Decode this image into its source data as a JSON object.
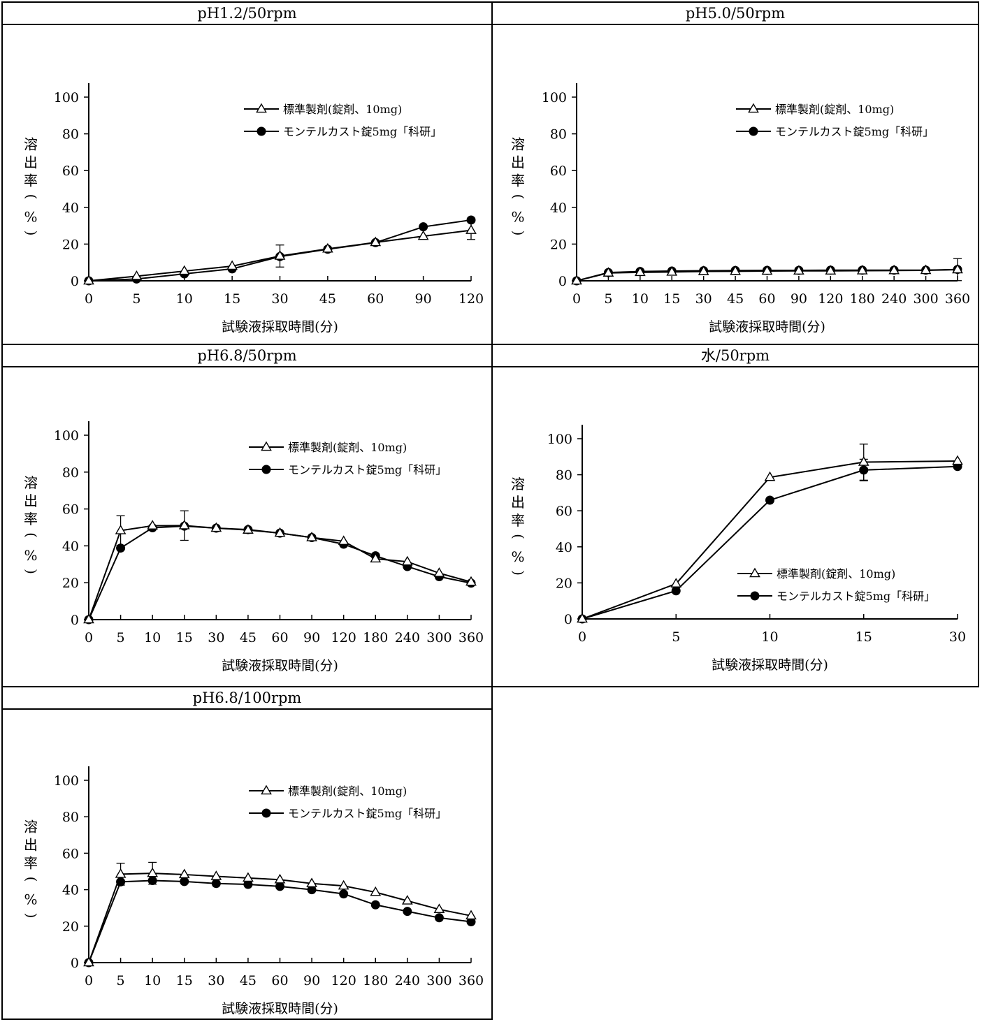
{
  "chart_data": [
    {
      "id": "p1",
      "type": "line",
      "title": "pH1.2/50rpm",
      "xlabel": "試験液採取時間(分)",
      "ylabel": "溶出率(%)",
      "ylim": [
        0,
        100
      ],
      "yticks": [
        0,
        20,
        40,
        60,
        80,
        100
      ],
      "categories": [
        "0",
        "5",
        "10",
        "15",
        "30",
        "45",
        "60",
        "90",
        "120"
      ],
      "legend_position": "top-right",
      "series": [
        {
          "name": "標準製剤(錠剤、10mg)",
          "marker": "open-triangle",
          "values": [
            0,
            2.5,
            5.3,
            8.0,
            13.5,
            17.4,
            20.9,
            24.3,
            27.5
          ],
          "error": [
            0,
            0,
            0,
            0,
            6,
            0,
            0,
            0,
            5
          ]
        },
        {
          "name": "モンテルカスト錠5mg「科研」",
          "marker": "filled-circle",
          "values": [
            0,
            1.0,
            3.8,
            6.5,
            13.2,
            17.2,
            20.8,
            29.4,
            33.1
          ],
          "error": [
            0,
            0,
            0,
            0,
            0,
            0,
            0,
            0,
            0
          ]
        }
      ]
    },
    {
      "id": "p2",
      "type": "line",
      "title": "pH5.0/50rpm",
      "xlabel": "試験液採取時間(分)",
      "ylabel": "溶出率(%)",
      "ylim": [
        0,
        100
      ],
      "yticks": [
        0,
        20,
        40,
        60,
        80,
        100
      ],
      "categories": [
        "0",
        "5",
        "10",
        "15",
        "30",
        "45",
        "60",
        "90",
        "120",
        "180",
        "240",
        "300",
        "360"
      ],
      "legend_position": "top-right",
      "series": [
        {
          "name": "標準製剤(錠剤、10mg)",
          "marker": "open-triangle",
          "values": [
            0,
            4.3,
            4.6,
            4.8,
            5.1,
            5.2,
            5.3,
            5.4,
            5.4,
            5.5,
            5.6,
            5.7,
            6.1
          ],
          "error": [
            0,
            0,
            0,
            0,
            0,
            0,
            0,
            0,
            0,
            0,
            0,
            0,
            6
          ]
        },
        {
          "name": "モンテルカスト錠5mg「科研」",
          "marker": "filled-circle",
          "values": [
            0,
            4.5,
            5.1,
            5.3,
            5.5,
            5.6,
            5.7,
            5.7,
            5.8,
            5.8,
            5.8,
            5.8,
            6.2
          ],
          "error": [
            0,
            0,
            0,
            0,
            0,
            0,
            0,
            0,
            0,
            0,
            0,
            0,
            0
          ]
        }
      ]
    },
    {
      "id": "p3",
      "type": "line",
      "title": "pH6.8/50rpm",
      "xlabel": "試験液採取時間(分)",
      "ylabel": "溶出率(%)",
      "ylim": [
        0,
        100
      ],
      "yticks": [
        0,
        20,
        40,
        60,
        80,
        100
      ],
      "categories": [
        "0",
        "5",
        "10",
        "15",
        "30",
        "45",
        "60",
        "90",
        "120",
        "180",
        "240",
        "300",
        "360"
      ],
      "legend_position": "top-right",
      "series": [
        {
          "name": "標準製剤(錠剤、10mg)",
          "marker": "open-triangle",
          "values": [
            0,
            48.3,
            50.9,
            51.0,
            49.6,
            48.6,
            46.9,
            44.5,
            42.5,
            33.0,
            31.4,
            25.2,
            20.4
          ],
          "error": [
            0,
            8,
            0,
            8,
            0,
            0,
            0,
            0,
            0,
            0,
            0,
            0,
            0
          ]
        },
        {
          "name": "モンテルカスト錠5mg「科研」",
          "marker": "filled-circle",
          "values": [
            0,
            38.8,
            49.8,
            50.7,
            49.6,
            48.8,
            46.9,
            44.5,
            40.9,
            34.6,
            28.8,
            23.3,
            19.8
          ],
          "error": [
            0,
            0,
            0,
            0,
            0,
            0,
            0,
            0,
            0,
            0,
            0,
            0,
            0
          ]
        }
      ]
    },
    {
      "id": "p4",
      "type": "line",
      "title": "水/50rpm",
      "xlabel": "試験液採取時間(分)",
      "ylabel": "溶出率(%)",
      "ylim": [
        0,
        100
      ],
      "yticks": [
        0,
        20,
        40,
        60,
        80,
        100
      ],
      "categories": [
        "0",
        "5",
        "10",
        "15",
        "30"
      ],
      "legend_position": "bottom-right",
      "series": [
        {
          "name": "標準製剤(錠剤、10mg)",
          "marker": "open-triangle",
          "values": [
            0,
            19.5,
            78.6,
            87.0,
            87.6
          ],
          "error": [
            0,
            0,
            0,
            10,
            0
          ]
        },
        {
          "name": "モンテルカスト錠5mg「科研」",
          "marker": "filled-circle",
          "values": [
            0,
            15.6,
            65.9,
            82.6,
            84.6
          ],
          "error": [
            0,
            0,
            0,
            6,
            0
          ]
        }
      ]
    },
    {
      "id": "p5",
      "type": "line",
      "title": "pH6.8/100rpm",
      "xlabel": "試験液採取時間(分)",
      "ylabel": "溶出率(%)",
      "ylim": [
        0,
        100
      ],
      "yticks": [
        0,
        20,
        40,
        60,
        80,
        100
      ],
      "categories": [
        "0",
        "5",
        "10",
        "15",
        "30",
        "45",
        "60",
        "90",
        "120",
        "180",
        "240",
        "300",
        "360"
      ],
      "legend_position": "top-right",
      "series": [
        {
          "name": "標準製剤(錠剤、10mg)",
          "marker": "open-triangle",
          "values": [
            0,
            48.5,
            49.0,
            48.3,
            47.3,
            46.4,
            45.5,
            43.4,
            42.1,
            38.6,
            33.9,
            29.2,
            25.7
          ],
          "error": [
            0,
            6,
            6,
            0,
            0,
            0,
            0,
            0,
            0,
            0,
            0,
            0,
            0
          ]
        },
        {
          "name": "モンテルカスト錠5mg「科研」",
          "marker": "filled-circle",
          "values": [
            0,
            44.3,
            45.0,
            44.5,
            43.4,
            42.9,
            41.8,
            40.0,
            37.7,
            31.7,
            28.1,
            24.6,
            22.4
          ],
          "error": [
            0,
            0,
            0,
            0,
            0,
            0,
            0,
            0,
            0,
            0,
            0,
            0,
            0
          ]
        }
      ]
    }
  ]
}
